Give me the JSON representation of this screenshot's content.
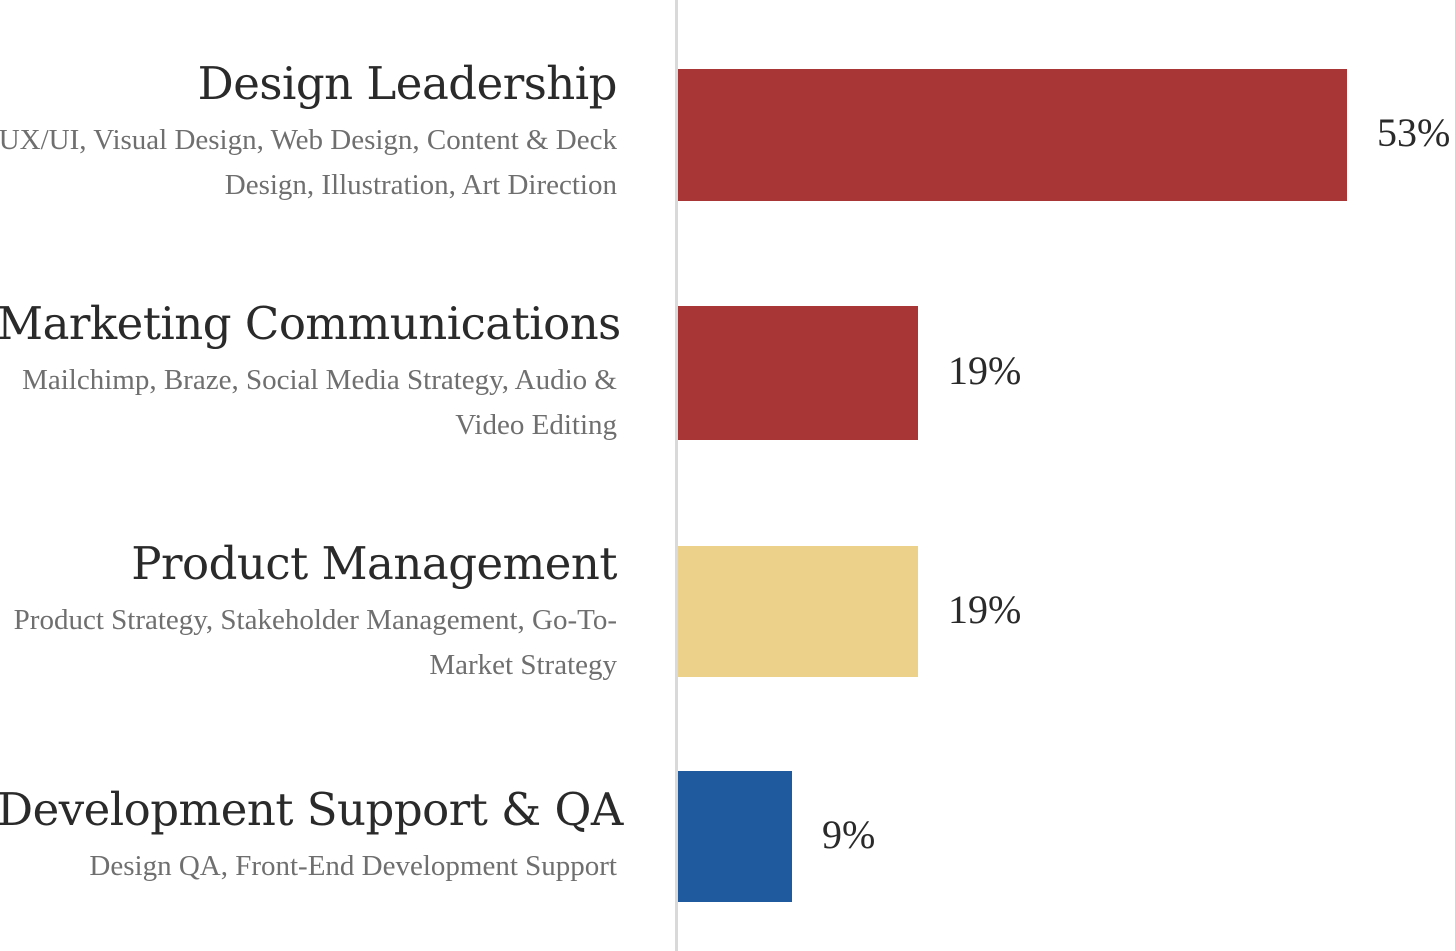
{
  "chart_data": {
    "type": "bar",
    "orientation": "horizontal",
    "value_suffix": "%",
    "xlim": [
      0,
      53
    ],
    "categories": [
      "Design Leadership",
      "Marketing Communications",
      "Product Management",
      "Development Support & QA"
    ],
    "subtitles": [
      "UX/UI, Visual Design, Web Design, Content & Deck Design, Illustration, Art Direction",
      "Mailchimp, Braze, Social Media Strategy, Audio & Video Editing",
      "Product Strategy, Stakeholder Management, Go-To-Market Strategy",
      "Design QA, Front-End Development Support"
    ],
    "values": [
      53,
      19,
      19,
      9
    ],
    "value_labels": [
      "53%",
      "19%",
      "19%",
      "9%"
    ],
    "colors": [
      "#a93636",
      "#a93636",
      "#ebd18a",
      "#1f5a9f"
    ]
  }
}
